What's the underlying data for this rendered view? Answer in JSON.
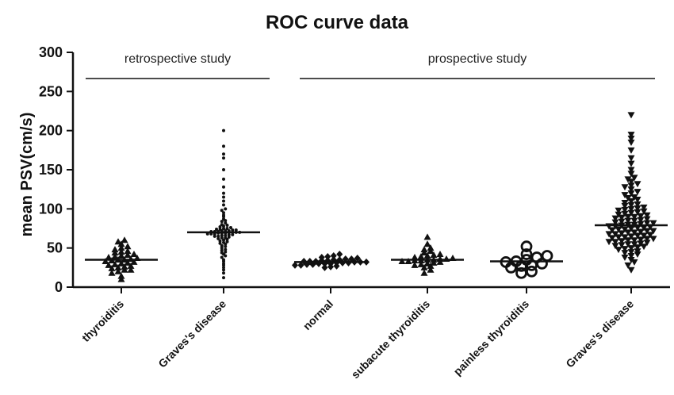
{
  "chart_data": {
    "type": "scatter",
    "title": "ROC curve data",
    "ylabel": "mean PSV(cm/s)",
    "xlabel": "",
    "ylim": [
      0,
      300
    ],
    "yticks": [
      "0",
      "50",
      "100",
      "150",
      "200",
      "250",
      "300"
    ],
    "groups": [
      {
        "label": "retrospective study",
        "categories": [
          "thyroiditis",
          "Graves's disease"
        ]
      },
      {
        "label": "prospective study",
        "categories": [
          "normal",
          "subacute thyroiditis",
          "painless thyroiditis",
          "Graves's disease"
        ]
      }
    ],
    "categories": [
      "thyroiditis",
      "Graves's disease",
      "normal",
      "subacute thyroiditis",
      "painless thyroiditis",
      "Graves's disease"
    ],
    "series": [
      {
        "category": "thyroiditis",
        "marker": "triangle-up",
        "mean": 35,
        "values": [
          10,
          14,
          18,
          20,
          22,
          22,
          24,
          25,
          26,
          27,
          28,
          29,
          30,
          31,
          32,
          33,
          34,
          35,
          35,
          36,
          37,
          38,
          39,
          40,
          41,
          42,
          44,
          45,
          46,
          48,
          50,
          52,
          55,
          58,
          60
        ]
      },
      {
        "category": "Graves's disease",
        "marker": "dot",
        "mean": 70,
        "values": [
          12,
          18,
          22,
          25,
          28,
          30,
          33,
          35,
          38,
          40,
          42,
          44,
          45,
          47,
          48,
          50,
          52,
          53,
          55,
          56,
          57,
          58,
          59,
          60,
          61,
          62,
          63,
          63,
          64,
          65,
          65,
          66,
          66,
          67,
          67,
          68,
          68,
          68,
          69,
          69,
          69,
          70,
          70,
          70,
          70,
          71,
          71,
          71,
          72,
          72,
          72,
          73,
          73,
          74,
          74,
          75,
          75,
          76,
          77,
          78,
          79,
          80,
          82,
          84,
          85,
          87,
          90,
          92,
          95,
          98,
          100,
          105,
          110,
          115,
          120,
          128,
          138,
          150,
          165,
          170,
          180,
          200
        ]
      },
      {
        "category": "normal",
        "marker": "diamond",
        "mean": 32,
        "values": [
          25,
          26,
          27,
          28,
          28,
          29,
          29,
          30,
          30,
          30,
          31,
          31,
          31,
          32,
          32,
          32,
          33,
          33,
          33,
          34,
          34,
          35,
          35,
          36,
          36,
          37,
          38,
          39,
          40,
          42
        ]
      },
      {
        "category": "subacute thyroiditis",
        "marker": "triangle-up",
        "mean": 35,
        "values": [
          18,
          22,
          25,
          27,
          28,
          29,
          30,
          31,
          32,
          33,
          33,
          34,
          34,
          35,
          35,
          36,
          36,
          37,
          38,
          39,
          40,
          41,
          42,
          44,
          46,
          48,
          50,
          55,
          64
        ]
      },
      {
        "category": "painless thyroiditis",
        "marker": "circle-open",
        "mean": 33,
        "values": [
          18,
          20,
          25,
          27,
          28,
          30,
          32,
          33,
          35,
          38,
          40,
          42,
          52
        ]
      },
      {
        "category": "Graves's disease",
        "marker": "triangle-down",
        "mean": 79,
        "values": [
          22,
          28,
          32,
          35,
          38,
          40,
          42,
          44,
          45,
          46,
          48,
          49,
          50,
          51,
          52,
          53,
          54,
          55,
          55,
          56,
          57,
          58,
          58,
          59,
          60,
          60,
          61,
          62,
          62,
          63,
          64,
          64,
          65,
          66,
          66,
          67,
          68,
          68,
          69,
          70,
          70,
          71,
          72,
          72,
          73,
          74,
          74,
          75,
          76,
          76,
          77,
          78,
          78,
          79,
          80,
          80,
          81,
          82,
          82,
          83,
          84,
          85,
          85,
          86,
          87,
          88,
          89,
          90,
          90,
          91,
          92,
          93,
          94,
          95,
          96,
          97,
          98,
          99,
          100,
          101,
          102,
          104,
          105,
          106,
          108,
          110,
          112,
          114,
          115,
          118,
          120,
          122,
          125,
          128,
          130,
          132,
          135,
          138,
          140,
          145,
          150,
          158,
          165,
          175,
          185,
          190,
          195,
          220
        ]
      }
    ],
    "colors": {
      "marker": "#111111",
      "axis": "#111111"
    }
  }
}
